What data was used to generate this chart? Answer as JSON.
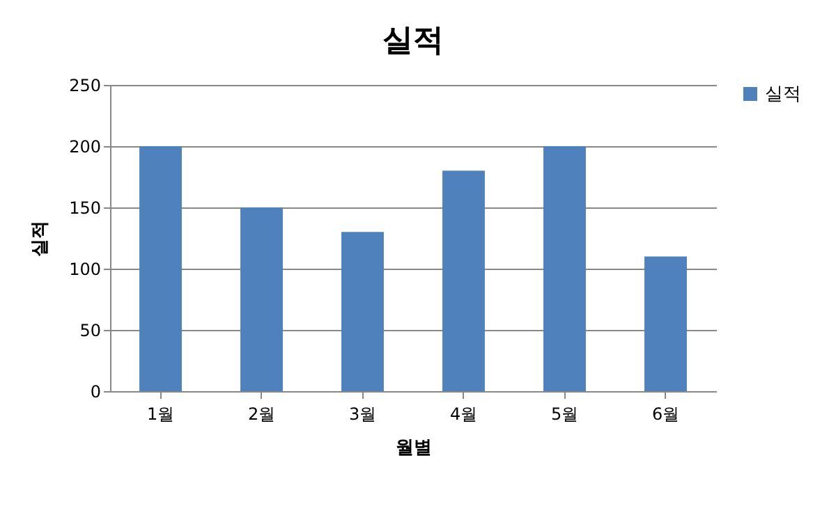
{
  "chart_data": {
    "type": "bar",
    "title": "실적",
    "xlabel": "월별",
    "ylabel": "실적",
    "categories": [
      "1월",
      "2월",
      "3월",
      "4월",
      "5월",
      "6월"
    ],
    "series": [
      {
        "name": "실적",
        "color": "#4f81bd",
        "values": [
          200,
          150,
          130,
          180,
          200,
          110
        ]
      }
    ],
    "ylim": [
      0,
      250
    ],
    "yticks": [
      0,
      50,
      100,
      150,
      200,
      250
    ],
    "grid": "y",
    "legend": "right"
  }
}
